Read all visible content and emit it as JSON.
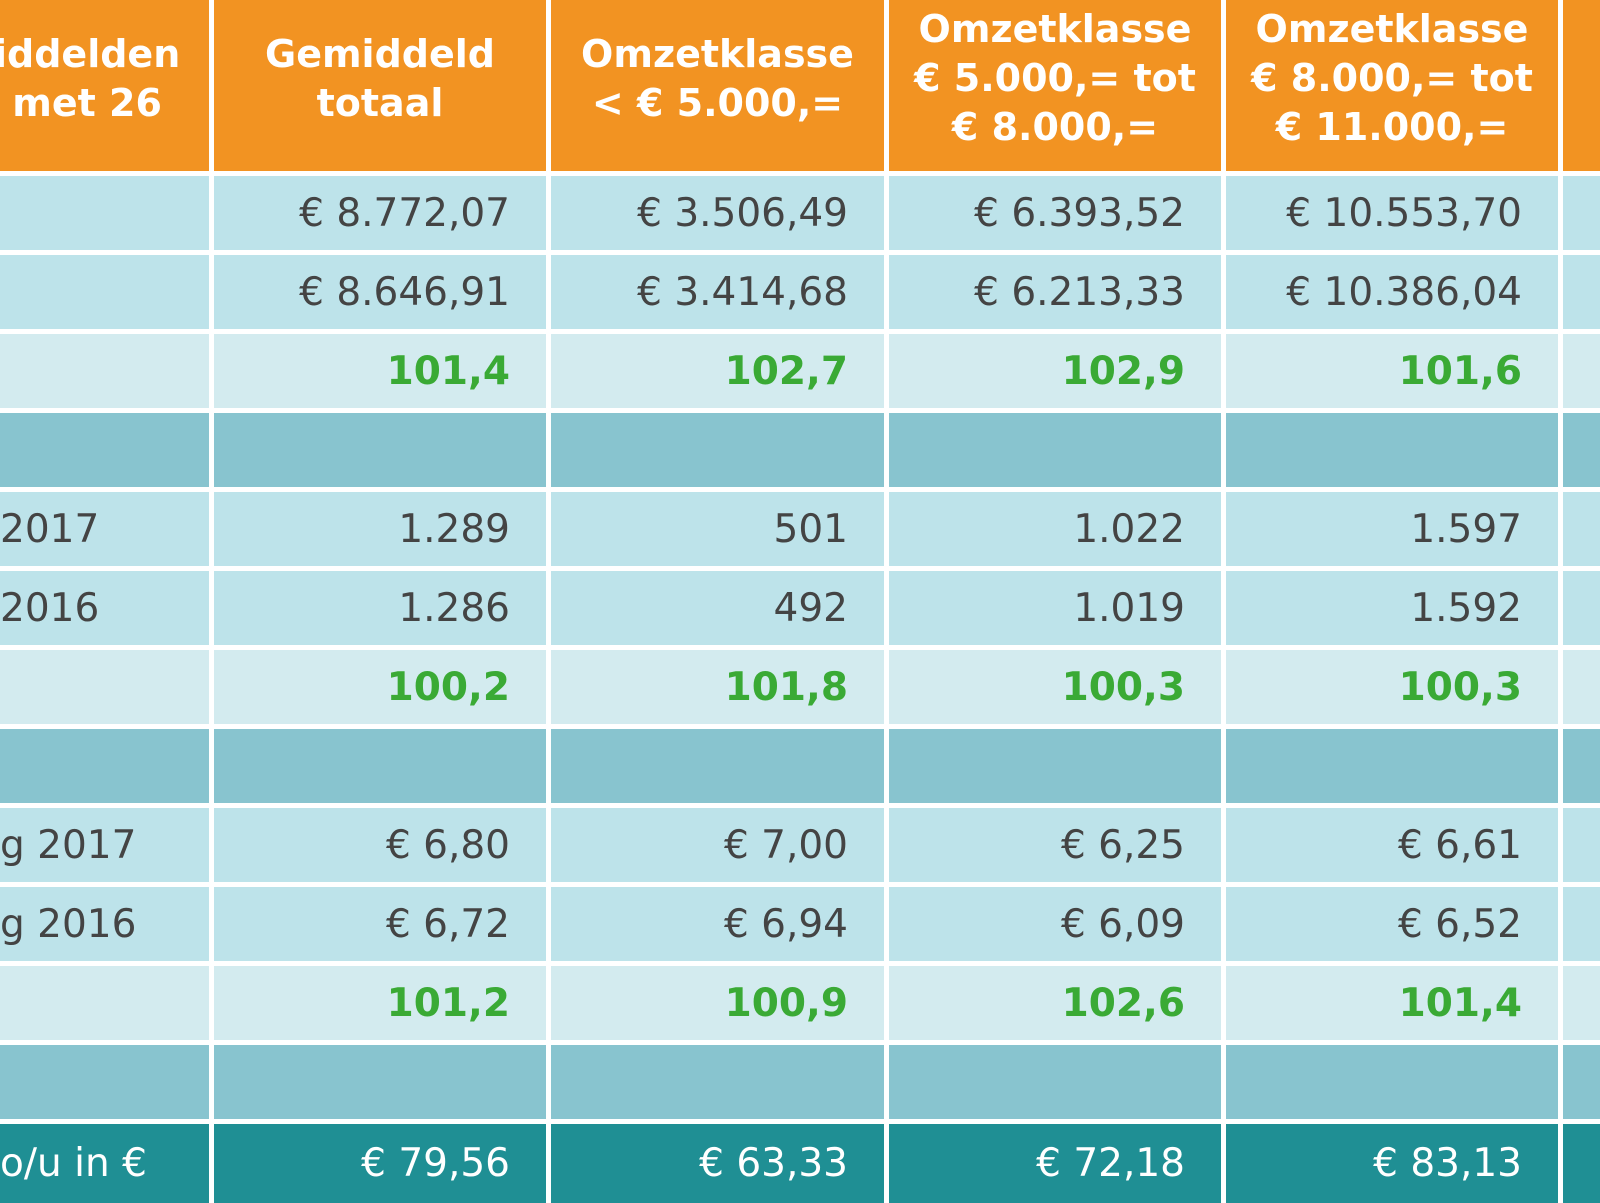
{
  "table": {
    "headers": [
      "iddelden\nmet 26",
      "Gemiddeld\ntotaal",
      "Omzetklasse\n< € 5.000,=",
      "Omzetklasse\n€ 5.000,= tot\n€ 8.000,=",
      "Omzetklasse\n€ 8.000,= tot\n€ 11.000,=",
      ""
    ],
    "rows": [
      {
        "type": "value",
        "label": "",
        "cells": [
          "€ 8.772,07",
          "€ 3.506,49",
          "€ 6.393,52",
          "€ 10.553,70"
        ]
      },
      {
        "type": "value",
        "label": "",
        "cells": [
          "€ 8.646,91",
          "€ 3.414,68",
          "€ 6.213,33",
          "€ 10.386,04"
        ]
      },
      {
        "type": "ratio",
        "label": "",
        "cells": [
          "101,4",
          "102,7",
          "102,9",
          "101,6"
        ]
      },
      {
        "type": "section",
        "label": "",
        "cells": [
          "",
          "",
          "",
          ""
        ]
      },
      {
        "type": "value",
        "label": "2017",
        "cells": [
          "1.289",
          "501",
          "1.022",
          "1.597"
        ]
      },
      {
        "type": "value",
        "label": "2016",
        "cells": [
          "1.286",
          "492",
          "1.019",
          "1.592"
        ]
      },
      {
        "type": "ratio",
        "label": "",
        "cells": [
          "100,2",
          "101,8",
          "100,3",
          "100,3"
        ]
      },
      {
        "type": "section",
        "label": "",
        "cells": [
          "",
          "",
          "",
          ""
        ]
      },
      {
        "type": "value",
        "label": "g 2017",
        "cells": [
          "€ 6,80",
          "€ 7,00",
          "€ 6,25",
          "€ 6,61"
        ]
      },
      {
        "type": "value",
        "label": "g 2016",
        "cells": [
          "€ 6,72",
          "€ 6,94",
          "€ 6,09",
          "€ 6,52"
        ]
      },
      {
        "type": "ratio",
        "label": "",
        "cells": [
          "101,2",
          "100,9",
          "102,6",
          "101,4"
        ]
      },
      {
        "type": "section",
        "label": "",
        "cells": [
          "",
          "",
          "",
          ""
        ]
      },
      {
        "type": "rate",
        "label": "o/u in €",
        "cells": [
          "€ 79,56",
          "€ 63,33",
          "€ 72,18",
          "€ 83,13"
        ]
      }
    ]
  },
  "colors": {
    "header": "#f29322",
    "value_row": "#bde3ea",
    "ratio_row": "#d3ebef",
    "ratio_text": "#3aaa35",
    "section_row": "#88c4cf",
    "rate_row": "#1f8f94"
  }
}
